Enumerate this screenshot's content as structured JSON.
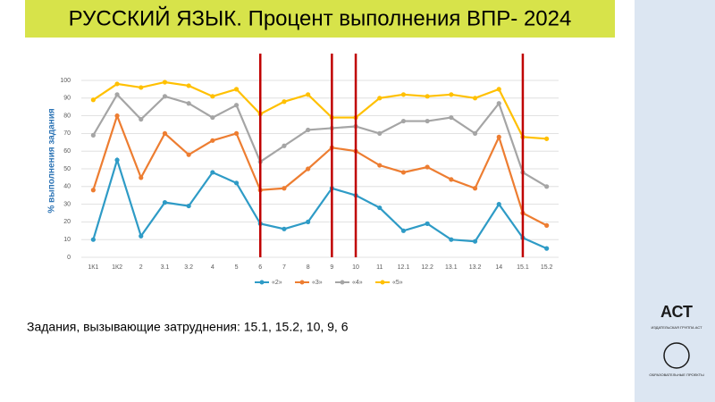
{
  "chart_data": {
    "type": "line",
    "title": "РУССКИЙ ЯЗЫК. Процент выполнения ВПР- 2024",
    "y_label": "% выполнения задания",
    "note": "Задания, вызывающие затруднения: 15.1, 15.2, 10, 9, 6",
    "categories": [
      "1К1",
      "1К2",
      "2",
      "3.1",
      "3.2",
      "4",
      "5",
      "6",
      "7",
      "8",
      "9",
      "10",
      "11",
      "12.1",
      "12.2",
      "13.1",
      "13.2",
      "14",
      "15.1",
      "15.2"
    ],
    "series": [
      {
        "name": "«2»",
        "color": "#2e9bc6",
        "values": [
          10,
          55,
          12,
          31,
          29,
          48,
          42,
          19,
          16,
          20,
          39,
          35,
          28,
          15,
          19,
          10,
          9,
          30,
          11,
          5
        ]
      },
      {
        "name": "«3»",
        "color": "#ed7d31",
        "values": [
          38,
          80,
          45,
          70,
          58,
          66,
          70,
          38,
          39,
          50,
          62,
          60,
          52,
          48,
          51,
          44,
          39,
          68,
          25,
          18
        ]
      },
      {
        "name": "«4»",
        "color": "#a5a5a5",
        "values": [
          69,
          92,
          78,
          91,
          87,
          79,
          86,
          54,
          63,
          72,
          73,
          74,
          70,
          77,
          77,
          79,
          70,
          87,
          48,
          40
        ]
      },
      {
        "name": "«5»",
        "color": "#ffc000",
        "values": [
          89,
          98,
          96,
          99,
          97,
          91,
          95,
          81,
          88,
          92,
          79,
          79,
          90,
          92,
          91,
          92,
          90,
          95,
          68,
          67
        ]
      }
    ],
    "highlight_indices": [
      7,
      10,
      11,
      18
    ],
    "highlight_color": "#c00000",
    "ylim": [
      0,
      100
    ],
    "yticks": [
      0,
      10,
      20,
      30,
      40,
      50,
      60,
      70,
      80,
      90,
      100
    ],
    "grid": true,
    "legend": "bottom"
  },
  "logo": {
    "brand": "АСТ",
    "caption": "ИЗДАТЕЛЬСКАЯ ГРУППА АСТ",
    "subtitle": "ОБРАЗОВАТЕЛЬНЫЕ ПРОЕКТЫ"
  }
}
